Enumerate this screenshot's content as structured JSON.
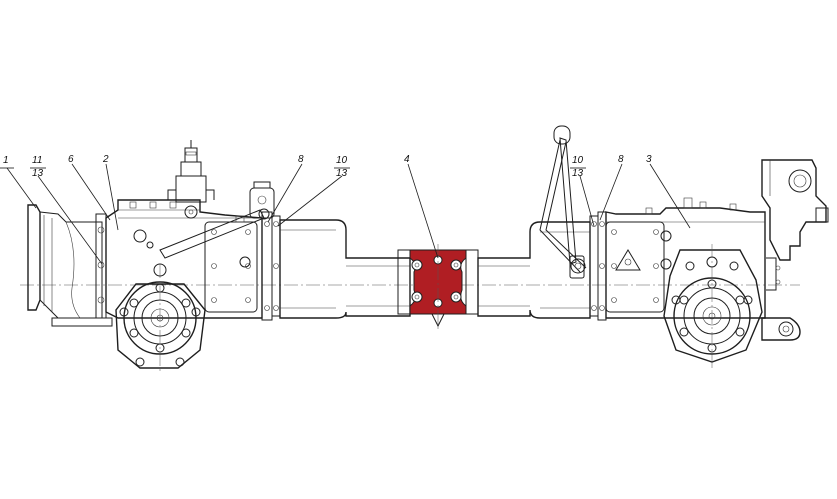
{
  "callouts": [
    {
      "id": "c1",
      "top": "1",
      "bottom": ""
    },
    {
      "id": "c11",
      "top": "11",
      "bottom": "13"
    },
    {
      "id": "c6",
      "top": "6",
      "bottom": ""
    },
    {
      "id": "c2",
      "top": "2",
      "bottom": ""
    },
    {
      "id": "c8a",
      "top": "8",
      "bottom": ""
    },
    {
      "id": "c10a",
      "top": "10",
      "bottom": "13"
    },
    {
      "id": "c4",
      "top": "4",
      "bottom": ""
    },
    {
      "id": "c10b",
      "top": "10",
      "bottom": "13"
    },
    {
      "id": "c8b",
      "top": "8",
      "bottom": ""
    },
    {
      "id": "c3",
      "top": "3",
      "bottom": ""
    }
  ],
  "colors": {
    "highlight": "#b01e23",
    "line": "#1e1e1e",
    "background": "#ffffff"
  }
}
